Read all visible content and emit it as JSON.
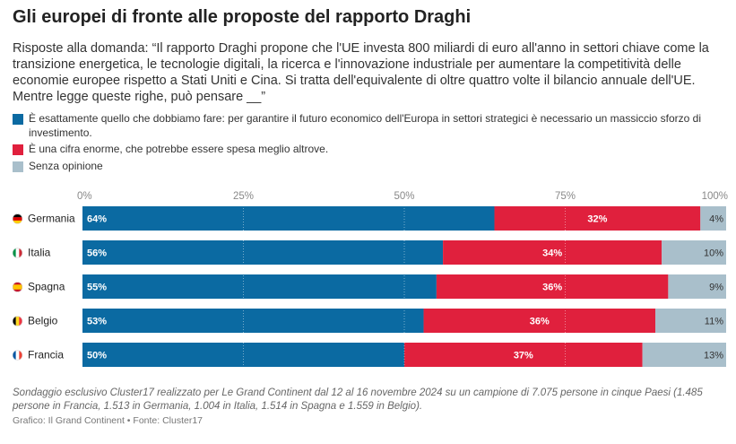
{
  "header": {
    "title": "Gli europei di fronte alle proposte del rapporto Draghi",
    "subtitle": "Risposte alla domanda: “Il rapporto Draghi propone che l'UE investa 800 miliardi di euro all'anno in settori chiave come la transizione energetica, le tecnologie digitali, la ricerca e l'innovazione industriale per aumentare la competitività delle economie europee rispetto a Stati Uniti e Cina. Si tratta dell'equivalente di oltre quattro volte il bilancio annuale dell'UE. Mentre legge queste righe, può pensare __”"
  },
  "chart_data": {
    "type": "bar",
    "orientation": "horizontal",
    "stacked": true,
    "title": "Gli europei di fronte alle proposte del rapporto Draghi",
    "categories": [
      "Germania",
      "Italia",
      "Spagna",
      "Belgio",
      "Francia"
    ],
    "series": [
      {
        "name": "È esattamente quello che dobbiamo fare: per garantire il futuro economico dell'Europa in settori strategici è necessario un massiccio sforzo di investimento.",
        "color": "#0b6aa2",
        "values": [
          64,
          56,
          55,
          53,
          50
        ]
      },
      {
        "name": "È una cifra enorme, che potrebbe essere spesa meglio altrove.",
        "color": "#e0203d",
        "values": [
          32,
          34,
          36,
          36,
          37
        ]
      },
      {
        "name": "Senza opinione",
        "color": "#a9bfcb",
        "values": [
          4,
          10,
          9,
          11,
          13
        ]
      }
    ],
    "x_ticks": [
      "0%",
      "25%",
      "50%",
      "75%",
      "100%"
    ],
    "xlim": [
      0,
      100
    ],
    "grid": true,
    "legend_position": "top",
    "flags": [
      "germany-flag-icon",
      "italy-flag-icon",
      "spain-flag-icon",
      "belgium-flag-icon",
      "france-flag-icon"
    ]
  },
  "footer": {
    "note": "Sondaggio esclusivo Cluster17 realizzato per Le Grand Continent dal 12 al 16 novembre 2024 su un campione di 7.075 persone in cinque Paesi (1.485 persone in Francia, 1.513 in Germania, 1.004 in Italia, 1.514 in Spagna e 1.559 in Belgio).",
    "source": "Grafico: Il Grand Continent • Fonte: Cluster17"
  }
}
